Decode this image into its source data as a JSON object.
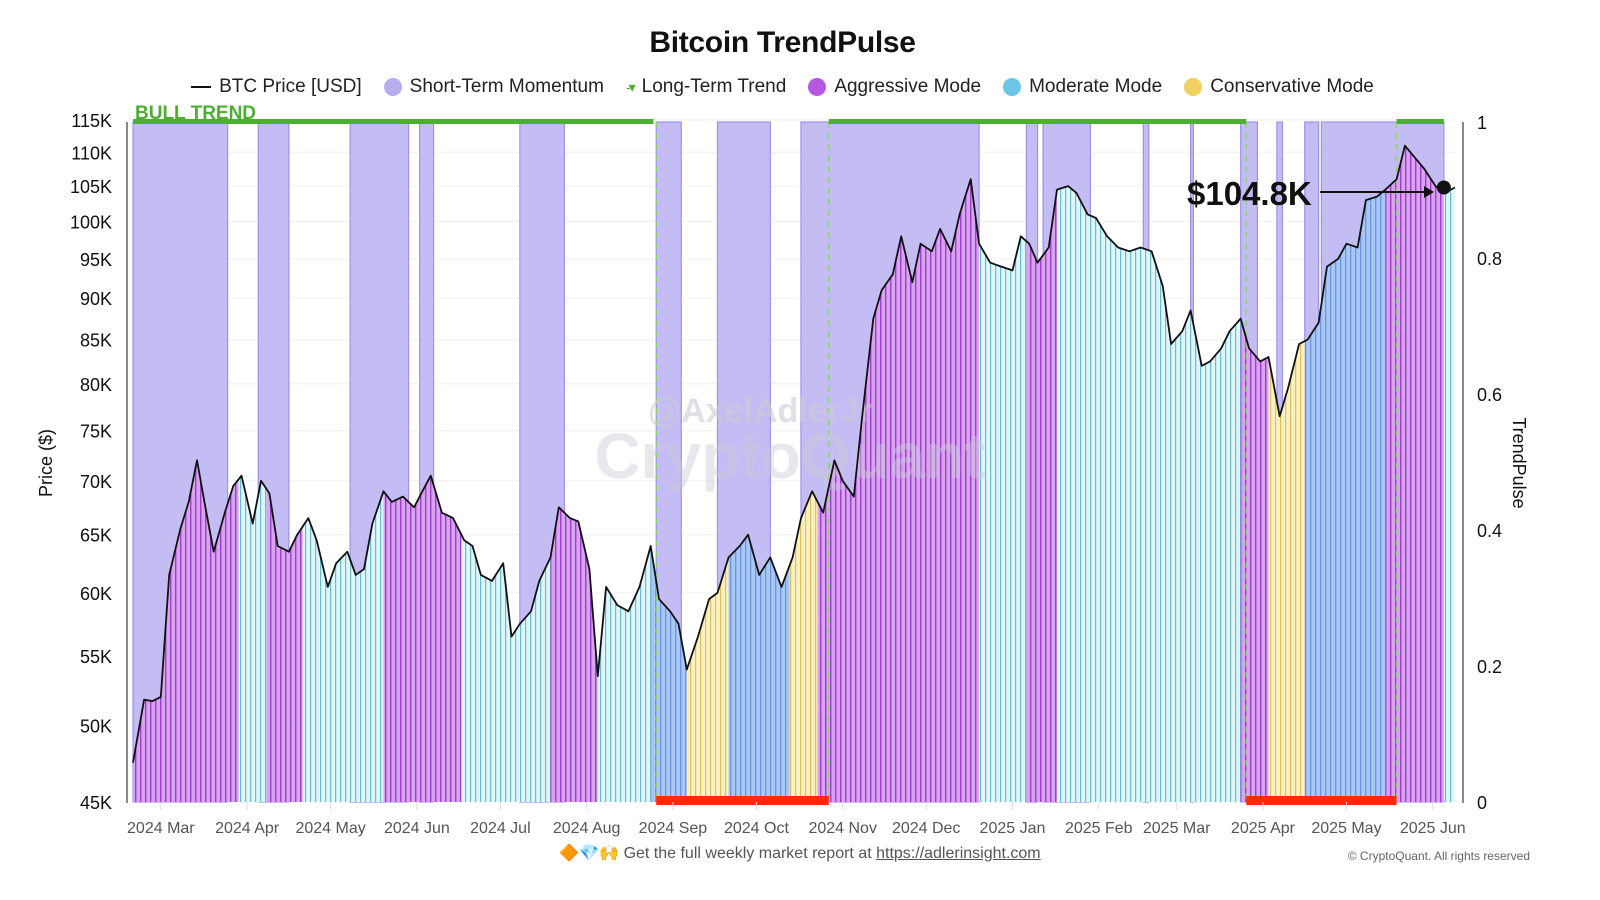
{
  "chart_data": {
    "type": "line",
    "title": "Bitcoin TrendPulse",
    "ylabel": "Price ($)",
    "y2label": "TrendPulse",
    "ylim": [
      45000,
      115000
    ],
    "yscale": "log",
    "y2lim": [
      0,
      1
    ],
    "yticks": [
      "45K",
      "50K",
      "55K",
      "60K",
      "65K",
      "70K",
      "75K",
      "80K",
      "85K",
      "90K",
      "95K",
      "100K",
      "105K",
      "110K",
      "115K"
    ],
    "ytick_values": [
      45000,
      50000,
      55000,
      60000,
      65000,
      70000,
      75000,
      80000,
      85000,
      90000,
      95000,
      100000,
      105000,
      110000,
      115000
    ],
    "y2ticks": [
      "0",
      "0.2",
      "0.4",
      "0.6",
      "0.8",
      "1"
    ],
    "y2tick_values": [
      0,
      0.2,
      0.4,
      0.6,
      0.8,
      1
    ],
    "xlim": [
      "2024-02-20",
      "2025-06-09"
    ],
    "xticks": [
      "2024 Mar",
      "2024 Apr",
      "2024 May",
      "2024 Jun",
      "2024 Jul",
      "2024 Aug",
      "2024 Sep",
      "2024 Oct",
      "2024 Nov",
      "2024 Dec",
      "2025 Jan",
      "2025 Feb",
      "2025 Mar",
      "2025 Apr",
      "2025 May",
      "2025 Jun"
    ],
    "xtick_dates": [
      "2024-03-01",
      "2024-04-01",
      "2024-05-01",
      "2024-06-01",
      "2024-07-01",
      "2024-08-01",
      "2024-09-01",
      "2024-10-01",
      "2024-11-01",
      "2024-12-01",
      "2025-01-01",
      "2025-02-01",
      "2025-03-01",
      "2025-04-01",
      "2025-05-01",
      "2025-06-01"
    ],
    "legend_position": "top-center",
    "legend": [
      {
        "label": "BTC Price [USD]",
        "type": "line",
        "color": "#111111"
      },
      {
        "label": "Short-Term Momentum",
        "type": "dot",
        "color": "#b7aef0"
      },
      {
        "label": "Long-Term Trend",
        "type": "dash",
        "color": "#4caf32"
      },
      {
        "label": "Aggressive Mode",
        "type": "dot",
        "color": "#b657e0"
      },
      {
        "label": "Moderate Mode",
        "type": "dot",
        "color": "#6ec6e6"
      },
      {
        "label": "Conservative Mode",
        "type": "dot",
        "color": "#f0d060"
      }
    ],
    "series": [
      {
        "name": "BTC Price [USD]",
        "x": [
          "2024-02-20",
          "2024-02-24",
          "2024-02-27",
          "2024-03-01",
          "2024-03-04",
          "2024-03-08",
          "2024-03-11",
          "2024-03-14",
          "2024-03-17",
          "2024-03-20",
          "2024-03-24",
          "2024-03-27",
          "2024-03-30",
          "2024-04-03",
          "2024-04-06",
          "2024-04-09",
          "2024-04-12",
          "2024-04-16",
          "2024-04-19",
          "2024-04-23",
          "2024-04-26",
          "2024-04-30",
          "2024-05-03",
          "2024-05-07",
          "2024-05-10",
          "2024-05-13",
          "2024-05-16",
          "2024-05-20",
          "2024-05-23",
          "2024-05-27",
          "2024-05-31",
          "2024-06-03",
          "2024-06-06",
          "2024-06-10",
          "2024-06-14",
          "2024-06-18",
          "2024-06-21",
          "2024-06-24",
          "2024-06-28",
          "2024-07-02",
          "2024-07-05",
          "2024-07-08",
          "2024-07-12",
          "2024-07-15",
          "2024-07-19",
          "2024-07-22",
          "2024-07-26",
          "2024-07-29",
          "2024-08-02",
          "2024-08-05",
          "2024-08-08",
          "2024-08-12",
          "2024-08-16",
          "2024-08-20",
          "2024-08-24",
          "2024-08-27",
          "2024-08-31",
          "2024-09-03",
          "2024-09-06",
          "2024-09-10",
          "2024-09-14",
          "2024-09-17",
          "2024-09-21",
          "2024-09-25",
          "2024-09-28",
          "2024-10-02",
          "2024-10-06",
          "2024-10-10",
          "2024-10-14",
          "2024-10-17",
          "2024-10-21",
          "2024-10-25",
          "2024-10-29",
          "2024-11-01",
          "2024-11-05",
          "2024-11-08",
          "2024-11-12",
          "2024-11-15",
          "2024-11-19",
          "2024-11-22",
          "2024-11-26",
          "2024-11-29",
          "2024-12-03",
          "2024-12-06",
          "2024-12-10",
          "2024-12-13",
          "2024-12-17",
          "2024-12-20",
          "2024-12-24",
          "2024-12-28",
          "2025-01-01",
          "2025-01-04",
          "2025-01-07",
          "2025-01-10",
          "2025-01-14",
          "2025-01-17",
          "2025-01-21",
          "2025-01-24",
          "2025-01-28",
          "2025-01-31",
          "2025-02-04",
          "2025-02-08",
          "2025-02-12",
          "2025-02-16",
          "2025-02-20",
          "2025-02-24",
          "2025-02-27",
          "2025-03-03",
          "2025-03-06",
          "2025-03-10",
          "2025-03-13",
          "2025-03-17",
          "2025-03-20",
          "2025-03-24",
          "2025-03-27",
          "2025-03-31",
          "2025-04-03",
          "2025-04-07",
          "2025-04-10",
          "2025-04-14",
          "2025-04-17",
          "2025-04-21",
          "2025-04-24",
          "2025-04-28",
          "2025-05-01",
          "2025-05-05",
          "2025-05-08",
          "2025-05-12",
          "2025-05-15",
          "2025-05-19",
          "2025-05-22",
          "2025-05-26",
          "2025-05-29",
          "2025-06-02",
          "2025-06-05",
          "2025-06-09"
        ],
        "values": [
          47500,
          51800,
          51700,
          52000,
          61500,
          65500,
          68000,
          72000,
          67500,
          63500,
          67000,
          69500,
          70500,
          66000,
          70000,
          68800,
          64000,
          63500,
          65000,
          66500,
          64500,
          60500,
          62500,
          63500,
          61500,
          62000,
          66000,
          69000,
          68000,
          68500,
          67500,
          69000,
          70500,
          67000,
          66500,
          64500,
          64000,
          61500,
          61000,
          62500,
          56500,
          57500,
          58500,
          61000,
          63000,
          67500,
          66500,
          66200,
          62000,
          53500,
          60500,
          59000,
          58500,
          60500,
          64000,
          59500,
          58500,
          57500,
          54000,
          56500,
          59500,
          60000,
          63000,
          64000,
          65000,
          61500,
          63000,
          60500,
          63000,
          66500,
          69000,
          67000,
          72000,
          70000,
          68500,
          76500,
          87500,
          91000,
          93000,
          98000,
          92000,
          97000,
          96000,
          99000,
          96000,
          101000,
          106000,
          97000,
          94500,
          94000,
          93500,
          98000,
          97000,
          94500,
          96500,
          104500,
          105000,
          104000,
          101000,
          100500,
          98000,
          96500,
          96000,
          96500,
          96000,
          91500,
          84500,
          86000,
          88500,
          82000,
          82500,
          84000,
          86000,
          87500,
          84000,
          82500,
          83000,
          76500,
          79500,
          84500,
          85000,
          87000,
          94000,
          95000,
          97000,
          96500,
          103000,
          103500,
          104500,
          106000,
          111000,
          109000,
          107500,
          105000,
          104000,
          104800
        ]
      },
      {
        "name": "Mode",
        "periods": [
          {
            "start": "2024-02-20",
            "end": "2024-03-29",
            "mode": "Aggressive"
          },
          {
            "start": "2024-03-29",
            "end": "2024-04-08",
            "mode": "Moderate"
          },
          {
            "start": "2024-04-08",
            "end": "2024-04-21",
            "mode": "Aggressive"
          },
          {
            "start": "2024-04-21",
            "end": "2024-05-20",
            "mode": "Moderate"
          },
          {
            "start": "2024-05-20",
            "end": "2024-06-17",
            "mode": "Aggressive"
          },
          {
            "start": "2024-06-17",
            "end": "2024-07-19",
            "mode": "Moderate"
          },
          {
            "start": "2024-07-19",
            "end": "2024-08-05",
            "mode": "Aggressive"
          },
          {
            "start": "2024-08-05",
            "end": "2024-08-24",
            "mode": "Moderate"
          },
          {
            "start": "2024-08-24",
            "end": "2024-09-06",
            "mode": "Moderate-Blue"
          },
          {
            "start": "2024-09-06",
            "end": "2024-09-21",
            "mode": "Conservative"
          },
          {
            "start": "2024-09-21",
            "end": "2024-10-13",
            "mode": "Moderate-Blue"
          },
          {
            "start": "2024-10-13",
            "end": "2024-10-23",
            "mode": "Conservative"
          },
          {
            "start": "2024-10-23",
            "end": "2024-12-20",
            "mode": "Aggressive"
          },
          {
            "start": "2024-12-20",
            "end": "2025-01-06",
            "mode": "Moderate"
          },
          {
            "start": "2025-01-06",
            "end": "2025-01-17",
            "mode": "Aggressive"
          },
          {
            "start": "2025-01-17",
            "end": "2025-02-08",
            "mode": "Moderate"
          },
          {
            "start": "2025-02-08",
            "end": "2025-03-06",
            "mode": "Moderate"
          },
          {
            "start": "2025-03-06",
            "end": "2025-03-24",
            "mode": "Moderate"
          },
          {
            "start": "2025-03-24",
            "end": "2025-04-03",
            "mode": "Aggressive"
          },
          {
            "start": "2025-04-03",
            "end": "2025-04-16",
            "mode": "Conservative"
          },
          {
            "start": "2025-04-16",
            "end": "2025-05-15",
            "mode": "Moderate-Blue"
          },
          {
            "start": "2025-05-15",
            "end": "2025-06-05",
            "mode": "Aggressive"
          },
          {
            "start": "2025-06-05",
            "end": "2025-06-09",
            "mode": "Moderate"
          }
        ]
      },
      {
        "name": "Short-Term Momentum",
        "periods": [
          {
            "start": "2024-02-20",
            "end": "2024-03-25"
          },
          {
            "start": "2024-04-05",
            "end": "2024-04-16"
          },
          {
            "start": "2024-05-08",
            "end": "2024-05-29"
          },
          {
            "start": "2024-06-02",
            "end": "2024-06-07"
          },
          {
            "start": "2024-07-08",
            "end": "2024-07-24"
          },
          {
            "start": "2024-08-26",
            "end": "2024-09-04"
          },
          {
            "start": "2024-09-17",
            "end": "2024-10-06"
          },
          {
            "start": "2024-10-17",
            "end": "2024-12-20"
          },
          {
            "start": "2025-01-06",
            "end": "2025-01-10"
          },
          {
            "start": "2025-01-12",
            "end": "2025-01-29"
          },
          {
            "start": "2025-02-17",
            "end": "2025-02-19"
          },
          {
            "start": "2025-03-06",
            "end": "2025-03-07"
          },
          {
            "start": "2025-03-24",
            "end": "2025-03-30"
          },
          {
            "start": "2025-04-06",
            "end": "2025-04-08"
          },
          {
            "start": "2025-04-16",
            "end": "2025-04-21"
          },
          {
            "start": "2025-04-22",
            "end": "2025-06-05"
          }
        ]
      },
      {
        "name": "Long-Term Trend",
        "bull_periods": [
          {
            "start": "2024-02-20",
            "end": "2024-08-25"
          },
          {
            "start": "2024-10-27",
            "end": "2025-03-26"
          },
          {
            "start": "2025-05-19",
            "end": "2025-06-05"
          }
        ],
        "bear_periods": [
          {
            "start": "2024-08-26",
            "end": "2024-10-27"
          },
          {
            "start": "2025-03-26",
            "end": "2025-05-19"
          }
        ]
      }
    ],
    "annotations": [
      {
        "text": "BULL TREND",
        "color": "#4caf32"
      },
      {
        "text": "$104.8K",
        "value": 104800,
        "date": "2025-06-05"
      }
    ]
  },
  "watermark": {
    "line1": "@AxelAdlerJr",
    "line2": "CryptoQuant"
  },
  "footer": {
    "emojis": "🔶💎🙌",
    "text": "Get the full weekly market report at ",
    "link": "https://adlerinsight.com"
  },
  "copyright": "© CryptoQuant. All rights reserved",
  "colors": {
    "aggressive": "#b657e0",
    "moderate": "#6ec6e6",
    "moderate_blue": "#7aa7ef",
    "conservative": "#f0d060",
    "momentum": "#b7aef0",
    "trend": "#4caf32",
    "bear": "#ff2a00"
  }
}
